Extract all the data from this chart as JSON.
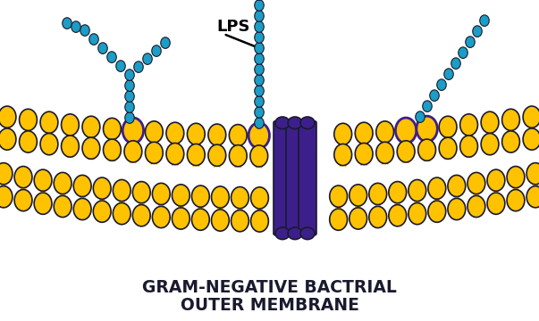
{
  "bg_color": "#ffffff",
  "gold": "#FFC200",
  "cyan": "#1B9DC5",
  "purple": "#3D1F8C",
  "outline": "#1A1A2E",
  "title_line1": "GRAM-NEGATIVE BACTRIAL",
  "title_line2": "OUTER MEMBRANE",
  "lps_label": "LPS",
  "fig_width": 6.03,
  "fig_height": 3.6,
  "dpi": 100
}
